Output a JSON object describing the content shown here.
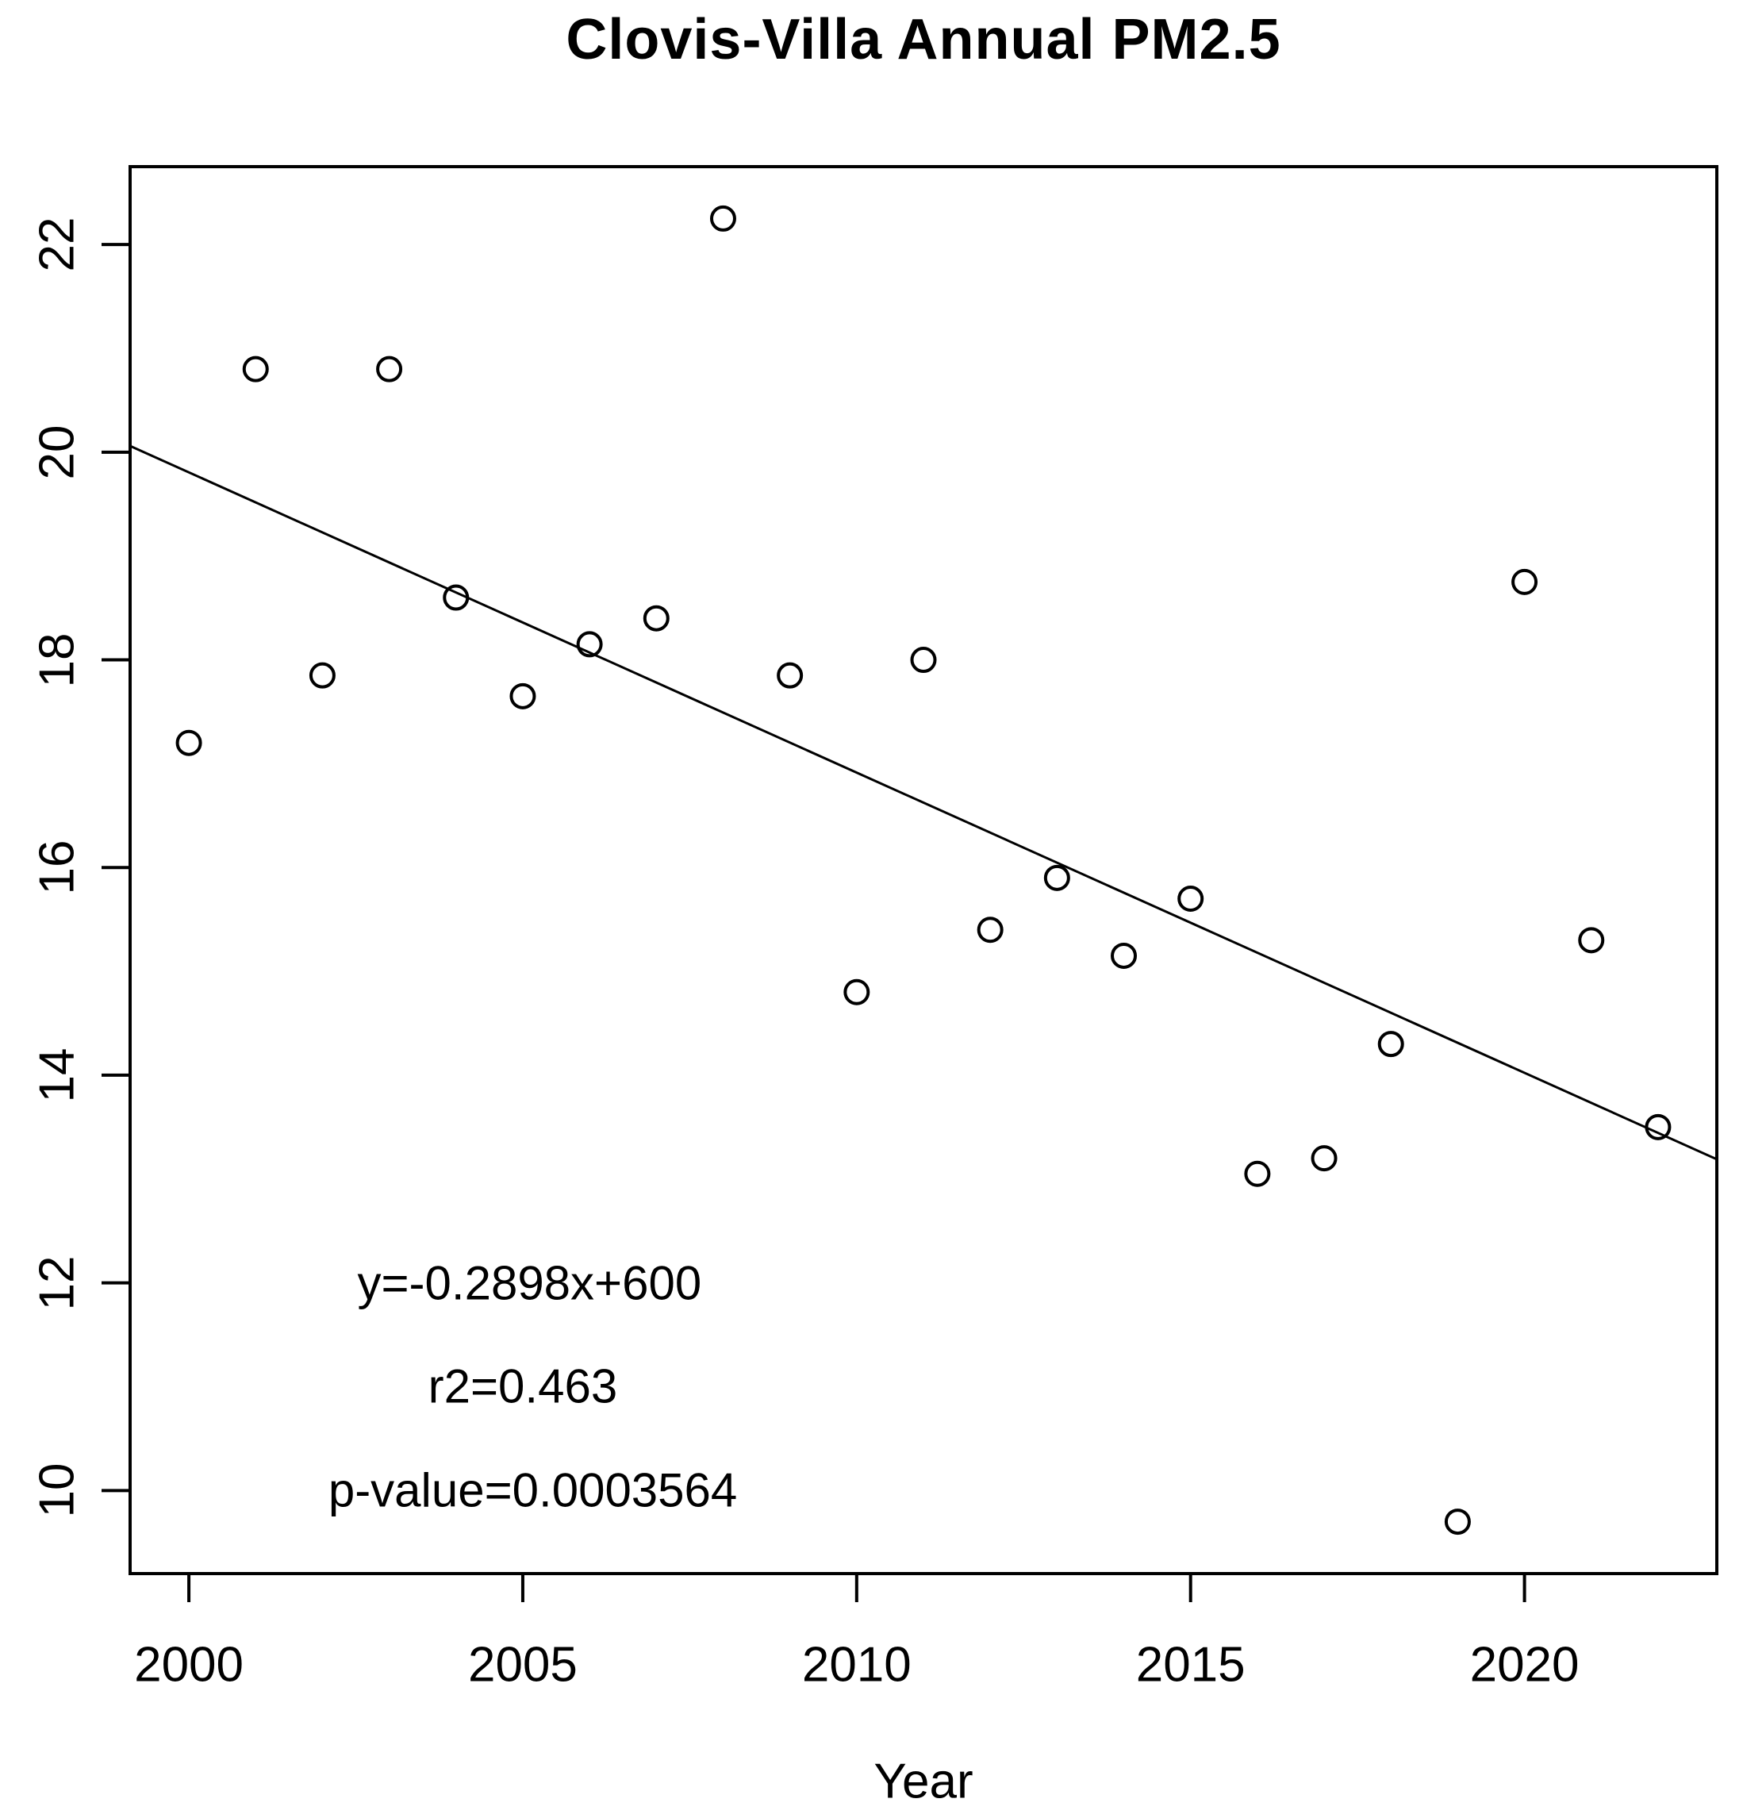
{
  "chart_data": {
    "type": "scatter",
    "title": "Clovis-Villa Annual PM2.5",
    "xlabel": "Year",
    "ylabel": "",
    "xlim": [
      1999.12,
      2022.88
    ],
    "ylim": [
      9.2,
      22.75
    ],
    "x_ticks": [
      2000,
      2005,
      2010,
      2015,
      2020
    ],
    "y_ticks": [
      10,
      12,
      14,
      16,
      18,
      20,
      22
    ],
    "grid": false,
    "legend": "none",
    "points": [
      {
        "x": 2000,
        "y": 17.2
      },
      {
        "x": 2001,
        "y": 20.8
      },
      {
        "x": 2002,
        "y": 17.85
      },
      {
        "x": 2003,
        "y": 20.8
      },
      {
        "x": 2004,
        "y": 18.6
      },
      {
        "x": 2005,
        "y": 17.65
      },
      {
        "x": 2006,
        "y": 18.15
      },
      {
        "x": 2007,
        "y": 18.4
      },
      {
        "x": 2008,
        "y": 22.25
      },
      {
        "x": 2009,
        "y": 17.85
      },
      {
        "x": 2010,
        "y": 14.8
      },
      {
        "x": 2011,
        "y": 18.0
      },
      {
        "x": 2012,
        "y": 15.4
      },
      {
        "x": 2013,
        "y": 15.9
      },
      {
        "x": 2014,
        "y": 15.15
      },
      {
        "x": 2015,
        "y": 15.7
      },
      {
        "x": 2016,
        "y": 13.05
      },
      {
        "x": 2017,
        "y": 13.2
      },
      {
        "x": 2018,
        "y": 14.3
      },
      {
        "x": 2019,
        "y": 9.7
      },
      {
        "x": 2020,
        "y": 18.75
      },
      {
        "x": 2021,
        "y": 15.3
      },
      {
        "x": 2022,
        "y": 13.5
      }
    ],
    "regression": {
      "slope": -0.2898,
      "intercept": 600,
      "r_squared": 0.463,
      "p_value": 0.0003564,
      "line_start": {
        "x": 1999.12,
        "y": 20.06
      },
      "line_end": {
        "x": 2022.88,
        "y": 13.19
      }
    },
    "annotations": [
      {
        "id": "equation",
        "text": "y=-0.2898x+600",
        "x": 2005.1,
        "y": 12.0
      },
      {
        "id": "r2",
        "text": "r2=0.463",
        "x": 2005.0,
        "y": 11.0
      },
      {
        "id": "pvalue",
        "text": "p-value=0.0003564",
        "x": 2005.15,
        "y": 10.0
      }
    ],
    "colors": {
      "background": "#ffffff",
      "axis": "#000000",
      "point_stroke": "#000000",
      "trend_line": "#000000",
      "text": "#000000"
    }
  }
}
